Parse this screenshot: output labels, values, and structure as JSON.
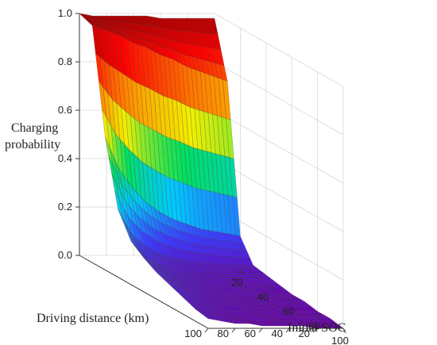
{
  "chart_data": {
    "type": "surface3d",
    "title": "",
    "zlabel": "Charging probability",
    "xlabel": "Initial SOC",
    "ylabel": "Driving distance (km)",
    "x_ticks": [
      "20",
      "40",
      "60",
      "80",
      "100"
    ],
    "y_ticks": [
      "20",
      "40",
      "60",
      "80",
      "100"
    ],
    "z_ticks": [
      "0.0",
      "0.2",
      "0.4",
      "0.6",
      "0.8",
      "1.0"
    ],
    "xlim": [
      0,
      100
    ],
    "ylim": [
      0,
      100
    ],
    "zlim": [
      0,
      1
    ],
    "colormap": [
      "#6a00b0",
      "#3a3cff",
      "#00c8ff",
      "#00e060",
      "#f0f000",
      "#ff8000",
      "#ff0000",
      "#a00000"
    ],
    "surface": {
      "x": [
        0,
        10,
        20,
        30,
        40,
        50,
        60,
        70,
        80,
        90,
        100
      ],
      "y": [
        0,
        10,
        20,
        30,
        40,
        50,
        60,
        70,
        80,
        90,
        100
      ],
      "z": [
        [
          0.98,
          0.98,
          0.98,
          0.98,
          0.98,
          0.99,
          0.99,
          0.99,
          0.99,
          0.99,
          1.0
        ],
        [
          0.75,
          0.77,
          0.79,
          0.81,
          0.84,
          0.86,
          0.89,
          0.91,
          0.94,
          0.96,
          0.98
        ],
        [
          0.14,
          0.15,
          0.16,
          0.17,
          0.19,
          0.21,
          0.24,
          0.28,
          0.34,
          0.42,
          0.55
        ],
        [
          0.05,
          0.05,
          0.05,
          0.06,
          0.06,
          0.07,
          0.08,
          0.1,
          0.13,
          0.18,
          0.28
        ],
        [
          0.04,
          0.04,
          0.04,
          0.04,
          0.05,
          0.05,
          0.06,
          0.07,
          0.09,
          0.12,
          0.18
        ],
        [
          0.03,
          0.03,
          0.03,
          0.03,
          0.04,
          0.04,
          0.05,
          0.06,
          0.07,
          0.1,
          0.14
        ],
        [
          0.02,
          0.02,
          0.02,
          0.03,
          0.03,
          0.03,
          0.04,
          0.05,
          0.06,
          0.08,
          0.11
        ],
        [
          0.02,
          0.02,
          0.02,
          0.02,
          0.02,
          0.03,
          0.03,
          0.04,
          0.05,
          0.07,
          0.09
        ],
        [
          0.01,
          0.01,
          0.01,
          0.02,
          0.02,
          0.02,
          0.03,
          0.03,
          0.04,
          0.05,
          0.07
        ],
        [
          0.01,
          0.01,
          0.01,
          0.01,
          0.01,
          0.02,
          0.02,
          0.02,
          0.03,
          0.04,
          0.05
        ],
        [
          0.0,
          0.0,
          0.0,
          0.01,
          0.01,
          0.01,
          0.01,
          0.02,
          0.02,
          0.03,
          0.04
        ]
      ]
    }
  }
}
